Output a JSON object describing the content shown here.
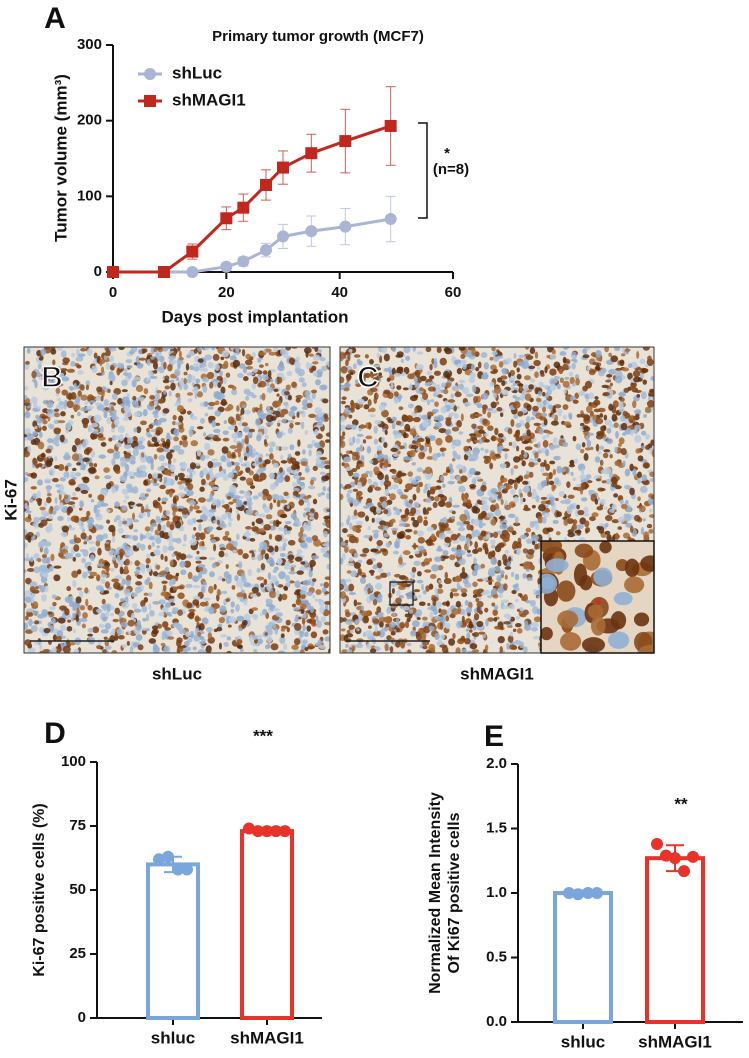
{
  "chart_data": [
    {
      "type": "line",
      "panel_label": "A",
      "title": "Primary tumor growth (MCF7)",
      "xlabel": "Days post implantation",
      "ylabel": "Tumor volume (mm³)",
      "x": [
        0,
        9,
        14,
        20,
        23,
        27,
        30,
        35,
        41,
        49
      ],
      "series": [
        {
          "name": "shLuc",
          "color": "#aab4d4",
          "marker": "circle",
          "values": [
            0,
            0,
            0,
            7,
            14,
            29,
            47,
            54,
            60,
            70
          ],
          "errors": [
            0,
            0,
            0,
            5,
            6,
            9,
            16,
            20,
            24,
            30
          ]
        },
        {
          "name": "shMAGI1",
          "color": "#c0281e",
          "marker": "square",
          "values": [
            0,
            0,
            27,
            71,
            85,
            115,
            138,
            157,
            173,
            193
          ],
          "errors": [
            0,
            0,
            10,
            15,
            18,
            20,
            22,
            25,
            42,
            52
          ]
        }
      ],
      "xlim": [
        0,
        60
      ],
      "xticks": [
        0,
        20,
        40,
        60
      ],
      "ylim": [
        0,
        300
      ],
      "yticks": [
        0,
        100,
        200,
        300
      ],
      "grid": false,
      "annotations": [
        "*",
        "(n=8)"
      ]
    },
    {
      "type": "bar",
      "panel_label": "D",
      "ylabel_lines": [
        "Ki-67 positive cells (%)"
      ],
      "categories": [
        "shluc",
        "shMAGI1"
      ],
      "colors": [
        "#7aa6db",
        "#e8322a"
      ],
      "values": [
        60,
        73
      ],
      "errors": [
        3,
        1.2
      ],
      "points": [
        [
          62,
          63,
          58,
          58
        ],
        [
          74,
          73,
          73,
          73,
          73
        ]
      ],
      "ylim": [
        0,
        100
      ],
      "yticks": [
        0,
        25,
        50,
        75,
        100
      ],
      "grid": false,
      "annotations": [
        "***"
      ]
    },
    {
      "type": "bar",
      "panel_label": "E",
      "ylabel_lines": [
        "Normalized Mean Intensity",
        "Of Ki67 positive cells"
      ],
      "categories": [
        "shluc",
        "shMAGI1"
      ],
      "colors": [
        "#7aa6db",
        "#e8322a"
      ],
      "values": [
        1.0,
        1.27
      ],
      "errors": [
        0.02,
        0.1
      ],
      "points": [
        [
          1.0,
          0.99,
          1.0,
          1.0
        ],
        [
          1.38,
          1.29,
          1.27,
          1.17,
          1.28
        ]
      ],
      "ylim": [
        0,
        2
      ],
      "yticks": [
        {
          "value": 0,
          "label": "0.0"
        },
        {
          "value": 0.5,
          "label": "0.5"
        },
        {
          "value": 1,
          "label": "1.0"
        },
        {
          "value": 1.5,
          "label": "1.5"
        },
        {
          "value": 2,
          "label": "2.0"
        }
      ],
      "grid": false,
      "annotations": [
        "**"
      ]
    }
  ],
  "images": {
    "stain": "Ki-67",
    "panels": [
      {
        "label": "B",
        "caption": "shLuc"
      },
      {
        "label": "C",
        "caption": "shMAGI1"
      }
    ]
  }
}
